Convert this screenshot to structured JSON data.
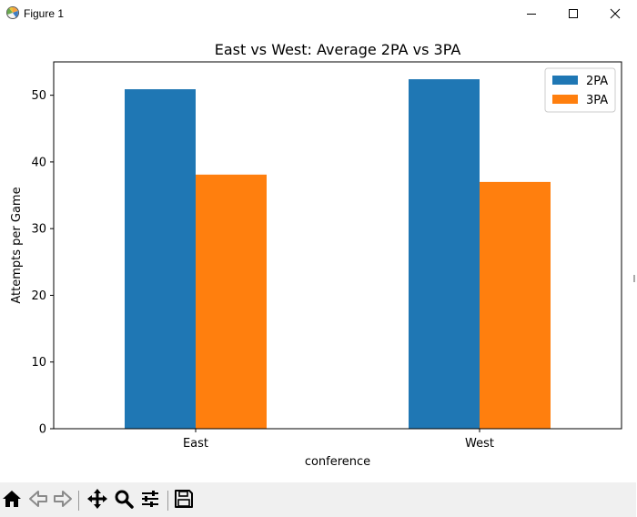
{
  "window": {
    "title": "Figure 1",
    "app_icon": "matplotlib-icon",
    "controls": {
      "minimize": "minimize-icon",
      "maximize": "maximize-icon",
      "close": "close-icon"
    }
  },
  "toolbar": {
    "buttons": [
      {
        "name": "home-button",
        "icon": "home-icon"
      },
      {
        "name": "back-button",
        "icon": "arrow-left-icon"
      },
      {
        "name": "forward-button",
        "icon": "arrow-right-icon"
      },
      {
        "name": "pan-button",
        "icon": "move-icon"
      },
      {
        "name": "zoom-button",
        "icon": "magnifier-icon"
      },
      {
        "name": "configure-subplots-button",
        "icon": "sliders-icon"
      },
      {
        "name": "save-button",
        "icon": "floppy-disk-icon"
      }
    ]
  },
  "colors": {
    "series_2pa": "#1f77b4",
    "series_3pa": "#ff7f0e",
    "toolbar_bg": "#f0f0f0"
  },
  "chart_data": {
    "type": "bar",
    "title": "East vs West: Average 2PA vs 3PA",
    "xlabel": "conference",
    "ylabel": "Attempts per Game",
    "categories": [
      "East",
      "West"
    ],
    "series": [
      {
        "name": "2PA",
        "values": [
          50.9,
          52.4
        ],
        "color": "#1f77b4"
      },
      {
        "name": "3PA",
        "values": [
          38.1,
          37.0
        ],
        "color": "#ff7f0e"
      }
    ],
    "ylim": [
      0,
      55
    ],
    "yticks": [
      0,
      10,
      20,
      30,
      40,
      50
    ],
    "grid": false,
    "legend_position": "top-right"
  }
}
